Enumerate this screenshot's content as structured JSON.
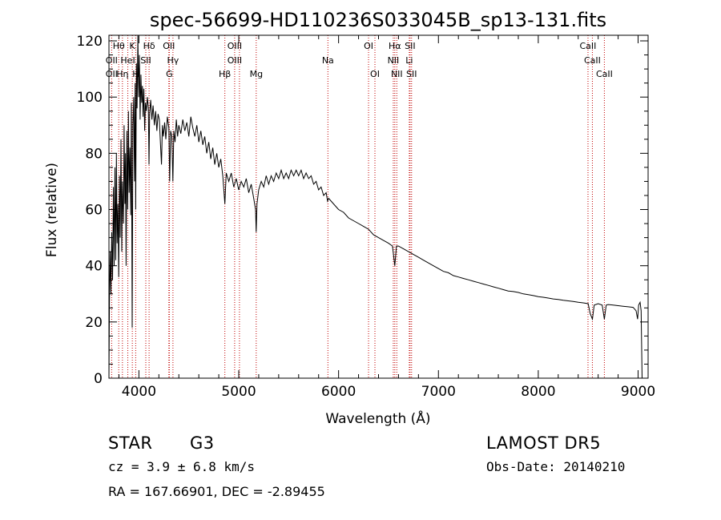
{
  "chart_data": {
    "type": "line",
    "title": "spec-56699-HD110236S033045B_sp13-131.fits",
    "xlabel": "Wavelength (Å)",
    "ylabel": "Flux (relative)",
    "xlim": [
      3700,
      9100
    ],
    "ylim": [
      0,
      122
    ],
    "x_ticks": [
      4000,
      5000,
      6000,
      7000,
      8000,
      9000
    ],
    "y_ticks": [
      0,
      20,
      40,
      60,
      80,
      100,
      120
    ],
    "grid": false,
    "series": [
      {
        "color": "#000000",
        "points": [
          [
            3700,
            0
          ],
          [
            3705,
            27
          ],
          [
            3712,
            45
          ],
          [
            3720,
            30
          ],
          [
            3728,
            52
          ],
          [
            3736,
            35
          ],
          [
            3745,
            68
          ],
          [
            3752,
            40
          ],
          [
            3760,
            75
          ],
          [
            3768,
            42
          ],
          [
            3775,
            80
          ],
          [
            3782,
            48
          ],
          [
            3790,
            62
          ],
          [
            3798,
            36
          ],
          [
            3805,
            72
          ],
          [
            3812,
            50
          ],
          [
            3820,
            85
          ],
          [
            3828,
            45
          ],
          [
            3836,
            70
          ],
          [
            3845,
            55
          ],
          [
            3852,
            90
          ],
          [
            3860,
            62
          ],
          [
            3866,
            80
          ],
          [
            3872,
            40
          ],
          [
            3880,
            88
          ],
          [
            3888,
            60
          ],
          [
            3895,
            95
          ],
          [
            3902,
            66
          ],
          [
            3910,
            82
          ],
          [
            3918,
            58
          ],
          [
            3925,
            98
          ],
          [
            3933,
            18
          ],
          [
            3940,
            90
          ],
          [
            3948,
            100
          ],
          [
            3956,
            70
          ],
          [
            3962,
            105
          ],
          [
            3968,
            60
          ],
          [
            3975,
            112
          ],
          [
            3982,
            96
          ],
          [
            3990,
            123
          ],
          [
            3998,
            100
          ],
          [
            4005,
            115
          ],
          [
            4012,
            92
          ],
          [
            4020,
            108
          ],
          [
            4028,
            98
          ],
          [
            4035,
            104
          ],
          [
            4042,
            93
          ],
          [
            4050,
            103
          ],
          [
            4058,
            88
          ],
          [
            4066,
            98
          ],
          [
            4075,
            95
          ],
          [
            4085,
            100
          ],
          [
            4095,
            96
          ],
          [
            4101,
            76
          ],
          [
            4108,
            94
          ],
          [
            4118,
            99
          ],
          [
            4130,
            92
          ],
          [
            4142,
            97
          ],
          [
            4155,
            90
          ],
          [
            4168,
            95
          ],
          [
            4180,
            88
          ],
          [
            4192,
            94
          ],
          [
            4205,
            92
          ],
          [
            4215,
            84
          ],
          [
            4226,
            76
          ],
          [
            4235,
            90
          ],
          [
            4245,
            86
          ],
          [
            4258,
            91
          ],
          [
            4270,
            85
          ],
          [
            4285,
            93
          ],
          [
            4300,
            89
          ],
          [
            4308,
            70
          ],
          [
            4318,
            88
          ],
          [
            4330,
            86
          ],
          [
            4340,
            70
          ],
          [
            4350,
            88
          ],
          [
            4362,
            84
          ],
          [
            4375,
            92
          ],
          [
            4388,
            86
          ],
          [
            4400,
            90
          ],
          [
            4420,
            87
          ],
          [
            4440,
            92
          ],
          [
            4460,
            88
          ],
          [
            4480,
            91
          ],
          [
            4500,
            86
          ],
          [
            4520,
            93
          ],
          [
            4540,
            89
          ],
          [
            4560,
            86
          ],
          [
            4580,
            90
          ],
          [
            4600,
            84
          ],
          [
            4620,
            88
          ],
          [
            4640,
            83
          ],
          [
            4660,
            86
          ],
          [
            4680,
            80
          ],
          [
            4700,
            84
          ],
          [
            4720,
            78
          ],
          [
            4740,
            82
          ],
          [
            4760,
            76
          ],
          [
            4780,
            80
          ],
          [
            4800,
            75
          ],
          [
            4820,
            78
          ],
          [
            4840,
            72
          ],
          [
            4861,
            62
          ],
          [
            4875,
            73
          ],
          [
            4900,
            70
          ],
          [
            4925,
            73
          ],
          [
            4950,
            68
          ],
          [
            4975,
            71
          ],
          [
            5000,
            67
          ],
          [
            5025,
            70
          ],
          [
            5050,
            68
          ],
          [
            5075,
            71
          ],
          [
            5100,
            66
          ],
          [
            5125,
            69
          ],
          [
            5150,
            64
          ],
          [
            5168,
            60
          ],
          [
            5175,
            52
          ],
          [
            5183,
            62
          ],
          [
            5200,
            67
          ],
          [
            5225,
            70
          ],
          [
            5250,
            68
          ],
          [
            5275,
            72
          ],
          [
            5300,
            69
          ],
          [
            5325,
            72
          ],
          [
            5350,
            70
          ],
          [
            5375,
            73
          ],
          [
            5400,
            71
          ],
          [
            5425,
            74
          ],
          [
            5450,
            71
          ],
          [
            5475,
            73
          ],
          [
            5500,
            71
          ],
          [
            5525,
            74
          ],
          [
            5550,
            72
          ],
          [
            5575,
            74
          ],
          [
            5600,
            72
          ],
          [
            5625,
            74
          ],
          [
            5650,
            71
          ],
          [
            5675,
            73
          ],
          [
            5700,
            71
          ],
          [
            5725,
            72
          ],
          [
            5750,
            69
          ],
          [
            5775,
            70
          ],
          [
            5800,
            67
          ],
          [
            5825,
            68
          ],
          [
            5850,
            65
          ],
          [
            5875,
            66
          ],
          [
            5890,
            63
          ],
          [
            5900,
            64
          ],
          [
            5925,
            63
          ],
          [
            5950,
            62
          ],
          [
            5975,
            61
          ],
          [
            6000,
            60
          ],
          [
            6050,
            59
          ],
          [
            6100,
            57
          ],
          [
            6150,
            56
          ],
          [
            6200,
            55
          ],
          [
            6250,
            54
          ],
          [
            6300,
            53
          ],
          [
            6350,
            51
          ],
          [
            6400,
            50
          ],
          [
            6450,
            49
          ],
          [
            6500,
            48
          ],
          [
            6540,
            47
          ],
          [
            6563,
            40
          ],
          [
            6580,
            47
          ],
          [
            6600,
            47
          ],
          [
            6650,
            46
          ],
          [
            6700,
            45
          ],
          [
            6750,
            44
          ],
          [
            6800,
            43
          ],
          [
            6850,
            42
          ],
          [
            6900,
            41
          ],
          [
            6950,
            40
          ],
          [
            7000,
            39
          ],
          [
            7050,
            38
          ],
          [
            7100,
            37.5
          ],
          [
            7150,
            36.5
          ],
          [
            7200,
            36
          ],
          [
            7250,
            35.5
          ],
          [
            7300,
            35
          ],
          [
            7350,
            34.5
          ],
          [
            7400,
            34
          ],
          [
            7450,
            33.5
          ],
          [
            7500,
            33
          ],
          [
            7550,
            32.5
          ],
          [
            7600,
            32
          ],
          [
            7650,
            31.5
          ],
          [
            7700,
            31
          ],
          [
            7750,
            30.8
          ],
          [
            7800,
            30.5
          ],
          [
            7850,
            30
          ],
          [
            7900,
            29.7
          ],
          [
            7950,
            29.4
          ],
          [
            8000,
            29
          ],
          [
            8050,
            28.8
          ],
          [
            8100,
            28.5
          ],
          [
            8150,
            28.2
          ],
          [
            8200,
            28
          ],
          [
            8250,
            27.7
          ],
          [
            8300,
            27.5
          ],
          [
            8350,
            27.3
          ],
          [
            8400,
            27
          ],
          [
            8450,
            26.8
          ],
          [
            8500,
            26.5
          ],
          [
            8520,
            23
          ],
          [
            8542,
            21
          ],
          [
            8560,
            26
          ],
          [
            8600,
            26.5
          ],
          [
            8640,
            26
          ],
          [
            8662,
            21
          ],
          [
            8680,
            26
          ],
          [
            8700,
            26.2
          ],
          [
            8750,
            26
          ],
          [
            8800,
            25.8
          ],
          [
            8850,
            25.6
          ],
          [
            8900,
            25.4
          ],
          [
            8950,
            25.2
          ],
          [
            8980,
            24
          ],
          [
            8995,
            21
          ],
          [
            9005,
            26
          ],
          [
            9020,
            27
          ],
          [
            9030,
            24
          ],
          [
            9040,
            0
          ]
        ]
      }
    ],
    "line_labels": [
      {
        "label": "Hθ",
        "x": 3798,
        "row": 0
      },
      {
        "label": "K",
        "x": 3934,
        "row": 0
      },
      {
        "label": "Hδ",
        "x": 4102,
        "row": 0
      },
      {
        "label": "OII",
        "x": 4300,
        "row": 0
      },
      {
        "label": "OIII",
        "x": 4959,
        "row": 0
      },
      {
        "label": "OI",
        "x": 6300,
        "row": 0
      },
      {
        "label": "Hα",
        "x": 6563,
        "row": 0
      },
      {
        "label": "SII",
        "x": 6716,
        "row": 0
      },
      {
        "label": "CaII",
        "x": 8498,
        "row": 0
      },
      {
        "label": "OII",
        "x": 3727,
        "row": 1
      },
      {
        "label": "HeI",
        "x": 3889,
        "row": 1
      },
      {
        "label": "SII",
        "x": 4069,
        "row": 1
      },
      {
        "label": "Hγ",
        "x": 4341,
        "row": 1
      },
      {
        "label": "OIII",
        "x": 4959,
        "row": 1
      },
      {
        "label": "Na",
        "x": 5893,
        "row": 1
      },
      {
        "label": "NII",
        "x": 6548,
        "row": 1
      },
      {
        "label": "Li",
        "x": 6708,
        "row": 1
      },
      {
        "label": "CaII",
        "x": 8542,
        "row": 1
      },
      {
        "label": "OII",
        "x": 3727,
        "row": 2
      },
      {
        "label": "Hη",
        "x": 3835,
        "row": 2
      },
      {
        "label": "H",
        "x": 3968,
        "row": 2
      },
      {
        "label": "G",
        "x": 4305,
        "row": 2
      },
      {
        "label": "Hβ",
        "x": 4861,
        "row": 2
      },
      {
        "label": "Mg",
        "x": 5175,
        "row": 2
      },
      {
        "label": "OI",
        "x": 6364,
        "row": 2
      },
      {
        "label": "NII",
        "x": 6583,
        "row": 2
      },
      {
        "label": "SII",
        "x": 6731,
        "row": 2
      },
      {
        "label": "CaII",
        "x": 8662,
        "row": 2
      }
    ],
    "marker_lines": [
      3727,
      3798,
      3835,
      3889,
      3934,
      3968,
      4069,
      4102,
      4300,
      4305,
      4341,
      4861,
      4959,
      5007,
      5175,
      5893,
      6300,
      6364,
      6548,
      6563,
      6583,
      6708,
      6716,
      6731,
      8498,
      8542,
      8662
    ]
  },
  "info": {
    "object_class": "STAR",
    "subclass": "G3",
    "survey": "LAMOST DR5",
    "cz": "cz = 3.9 ± 6.8 km/s",
    "obs_date": "Obs-Date: 20140210",
    "coords": "RA = 167.66901, DEC =  -2.89455"
  },
  "colors": {
    "spectrum": "#000000",
    "marker_lines": "#c00000",
    "axes": "#000000"
  }
}
